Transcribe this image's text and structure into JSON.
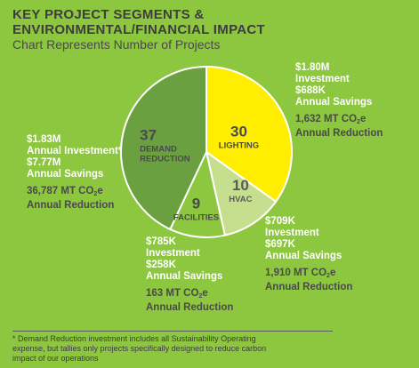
{
  "header": {
    "title_line1": "KEY PROJECT SEGMENTS &",
    "title_line2": "ENVIRONMENTAL/FINANCIAL IMPACT",
    "subtitle": "Chart Represents Number of Projects"
  },
  "chart_data": {
    "type": "pie",
    "title": "KEY PROJECT SEGMENTS & ENVIRONMENTAL/FINANCIAL IMPACT",
    "subtitle": "Chart Represents Number of Projects",
    "slices": [
      {
        "name": "LIGHTING",
        "value": 30,
        "color": "#ffee00",
        "label_color": "#4a4a4a"
      },
      {
        "name": "HVAC",
        "value": 10,
        "color": "#c6df8f",
        "label_color": "#5a5a5a"
      },
      {
        "name": "FACILITIES",
        "value": 9,
        "color": "#8dc63f",
        "label_color": "#4a4a4a"
      },
      {
        "name": "DEMAND REDUCTION",
        "value": 37,
        "color": "#6aa040",
        "label_color": "#4a4a4a"
      }
    ],
    "annotations": {
      "lighting": {
        "investment": "$1.80M",
        "investment_label": "Investment",
        "savings": "$688K",
        "savings_label": "Annual Savings",
        "co2": "1,632 MT CO",
        "co2_suffix": "e",
        "co2_label": "Annual Reduction"
      },
      "demand": {
        "investment": "$1.83M",
        "investment_label": "Annual Investment*",
        "savings": "$7.77M",
        "savings_label": "Annual Savings",
        "co2": "36,787 MT CO",
        "co2_suffix": "e",
        "co2_label": "Annual Reduction"
      },
      "facilities": {
        "investment": "$785K",
        "investment_label": "Investment",
        "savings": "$258K",
        "savings_label": "Annual Savings",
        "co2": "163 MT CO",
        "co2_suffix": "e",
        "co2_label": "Annual Reduction"
      },
      "hvac": {
        "investment": "$709K",
        "investment_label": "Investment",
        "savings": "$697K",
        "savings_label": "Annual Savings",
        "co2": "1,910 MT CO",
        "co2_suffix": "e",
        "co2_label": "Annual Reduction"
      }
    },
    "co2_subscript": "2"
  },
  "footnote": {
    "line1": "* Demand Reduction investment includes all Sustainability Operating",
    "line2": "expense, but tallies only projects specifically designed to reduce carbon",
    "line3": "impact of our operations"
  }
}
